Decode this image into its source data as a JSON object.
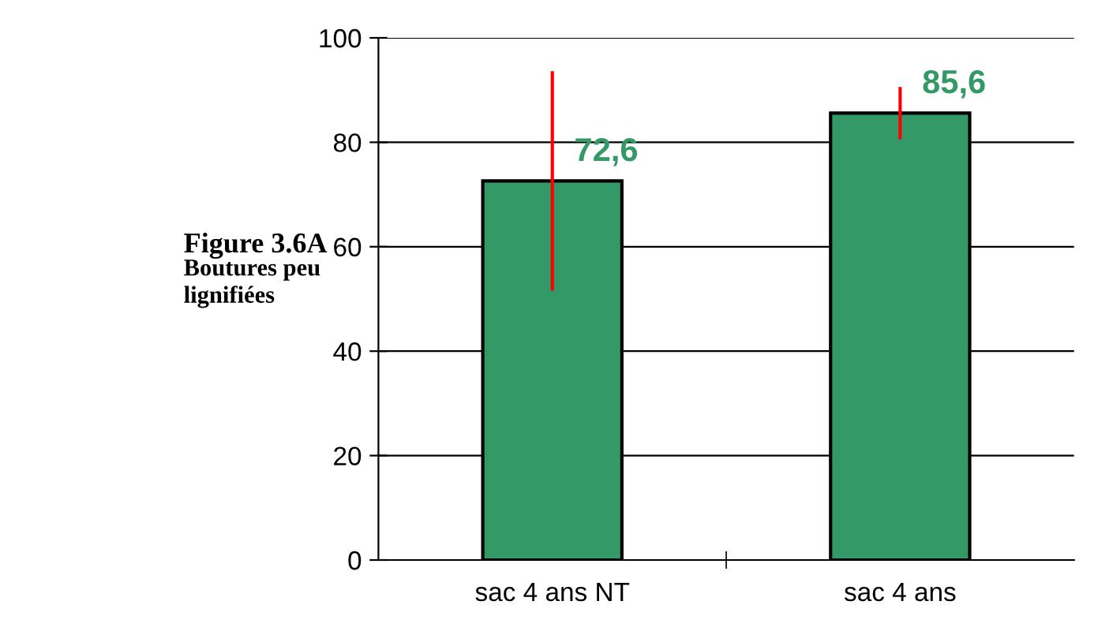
{
  "chart_data": {
    "type": "bar",
    "title": "Figure 3.6A",
    "subtitle": "Boutures peu lignifiées",
    "categories": [
      "sac 4 ans NT",
      "sac 4 ans"
    ],
    "values": [
      72.6,
      85.6
    ],
    "errors": [
      21,
      5
    ],
    "value_labels": [
      "72,6",
      "85,6"
    ],
    "color": "#339966",
    "ylim": [
      0,
      100
    ],
    "yticks": [
      0,
      20,
      40,
      60,
      80,
      100
    ],
    "grid": "y",
    "legend": false
  }
}
